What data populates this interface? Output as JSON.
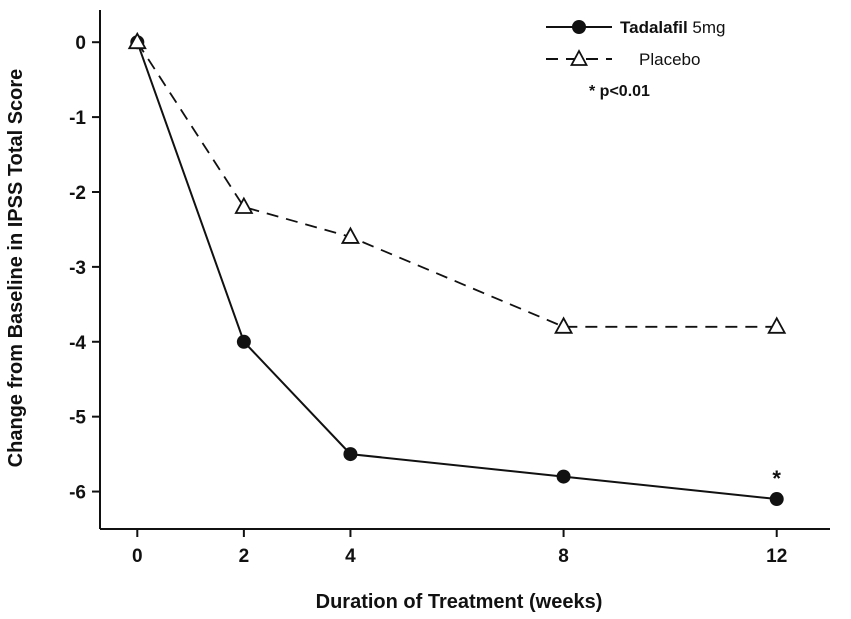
{
  "chart_data": {
    "type": "line",
    "title": "",
    "xlabel": "Duration of Treatment (weeks)",
    "ylabel": "Change from Baseline in IPSS Total Score",
    "x": [
      0,
      2,
      4,
      8,
      12
    ],
    "x_tick_labels": [
      "0",
      "2",
      "4",
      "8",
      "12"
    ],
    "y_ticks": [
      0,
      -1,
      -2,
      -3,
      -4,
      -5,
      -6
    ],
    "xlim": [
      -0.7,
      13
    ],
    "ylim": [
      -6.5,
      0.43
    ],
    "grid": false,
    "legend_position": "top-right",
    "line_color": "#111111",
    "series": [
      {
        "name": "Tadalafil 5mg",
        "values": [
          0,
          -4.0,
          -5.5,
          -5.8,
          -6.1
        ],
        "line_style": "solid",
        "marker": "filled-circle",
        "color": "#111111"
      },
      {
        "name": "Placebo",
        "values": [
          0,
          -2.2,
          -2.6,
          -3.8,
          -3.8
        ],
        "line_style": "dashed",
        "marker": "open-triangle",
        "color": "#111111"
      }
    ],
    "annotation": {
      "text": "*",
      "x": 12,
      "y": -6.1
    }
  },
  "legend": {
    "entries": [
      {
        "parts": [
          {
            "text": "Tadalafil",
            "bold": true
          },
          {
            "text": " 5mg",
            "bold": false
          }
        ],
        "line_style": "solid",
        "marker": "filled-circle"
      },
      {
        "parts": [
          {
            "text": "Placebo",
            "bold": false
          }
        ],
        "line_style": "dashed",
        "marker": "open-triangle"
      }
    ],
    "note": "* p<0.01"
  }
}
